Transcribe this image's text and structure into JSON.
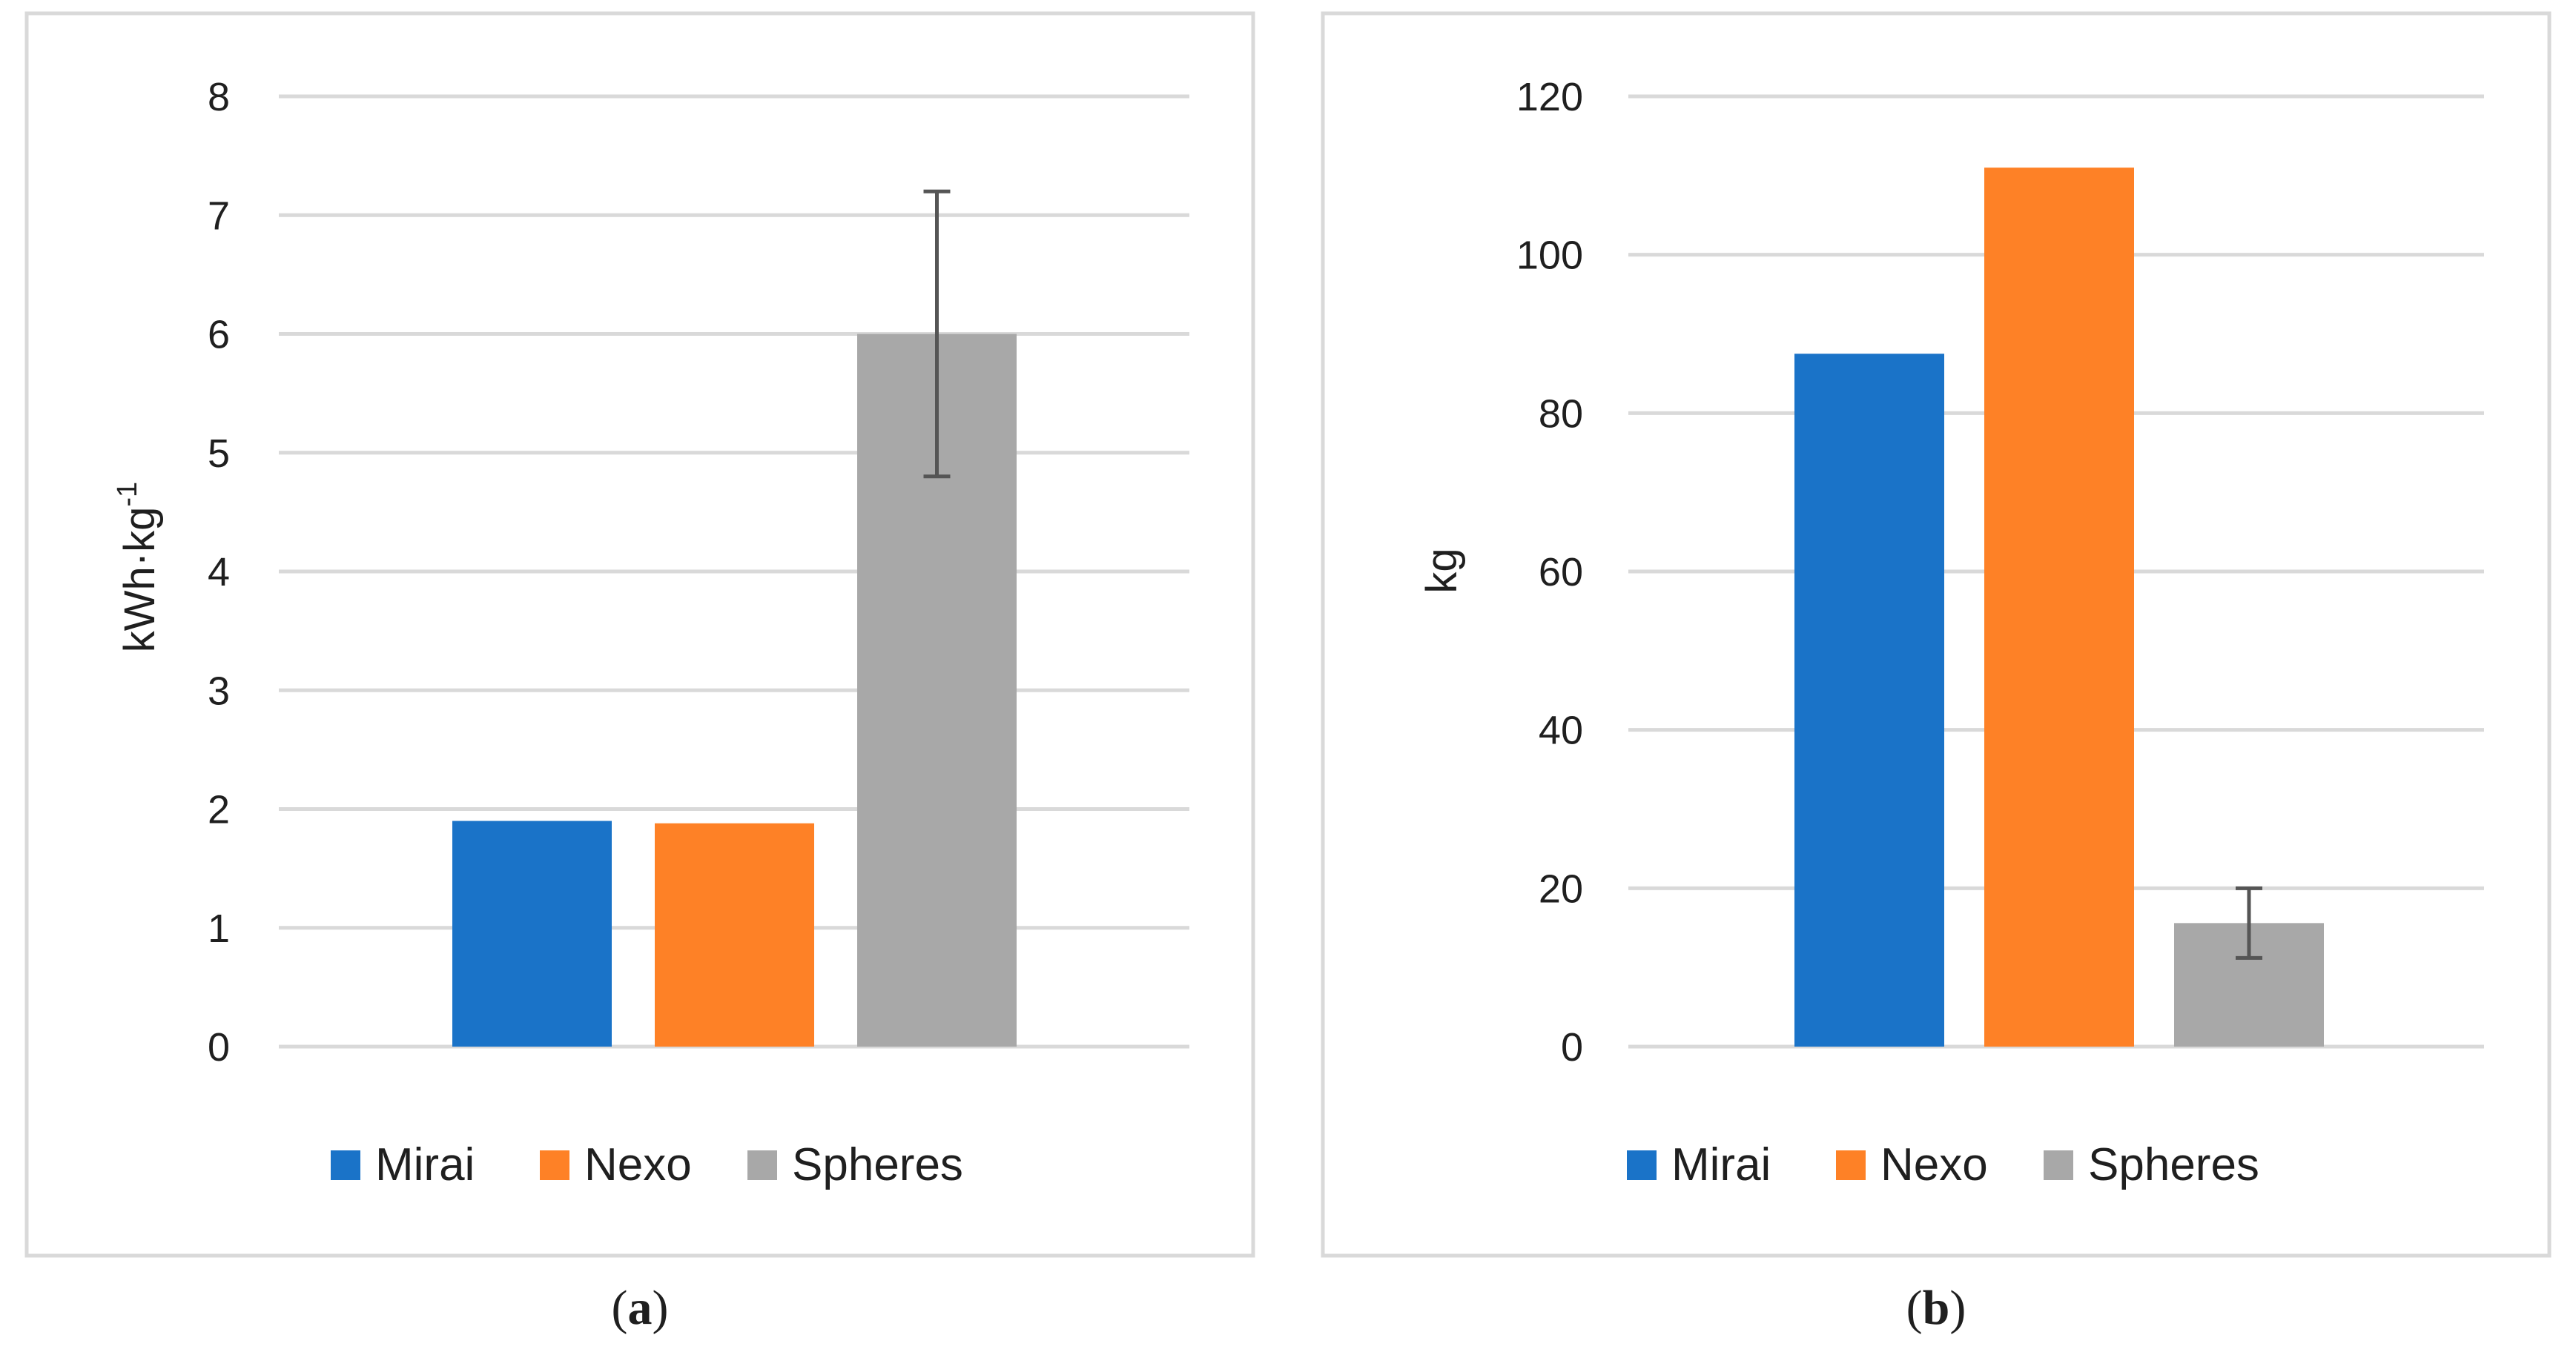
{
  "colors": {
    "mirai": "#1a73c8",
    "nexo": "#fe8126",
    "spheres": "#a8a8a8",
    "grid": "#d9d9d9",
    "frame": "#d9d9d9",
    "errorbar": "#555555"
  },
  "chart_data": [
    {
      "type": "bar",
      "categories": [
        "Mirai",
        "Nexo",
        "Spheres"
      ],
      "values": [
        1.9,
        1.88,
        6.0
      ],
      "error": [
        null,
        null,
        1.2
      ],
      "ylabel": "kWh·kg",
      "ylabel_sup": "-1",
      "ylim": [
        0,
        8
      ],
      "yticks": [
        "0",
        "1",
        "2",
        "3",
        "4",
        "5",
        "6",
        "7",
        "8"
      ],
      "grid": true,
      "legend": [
        "Mirai",
        "Nexo",
        "Spheres"
      ],
      "legend_position": "bottom",
      "caption_open": "(",
      "caption_letter": "a",
      "caption_close": ")"
    },
    {
      "type": "bar",
      "categories": [
        "Mirai",
        "Nexo",
        "Spheres"
      ],
      "values": [
        87.5,
        111,
        15.6
      ],
      "error": [
        null,
        null,
        4.4
      ],
      "ylabel": "kg",
      "ylim": [
        0,
        120
      ],
      "yticks": [
        "0",
        "20",
        "40",
        "60",
        "80",
        "100",
        "120"
      ],
      "grid": true,
      "legend": [
        "Mirai",
        "Nexo",
        "Spheres"
      ],
      "legend_position": "bottom",
      "caption_open": "(",
      "caption_letter": "b",
      "caption_close": ")"
    }
  ]
}
